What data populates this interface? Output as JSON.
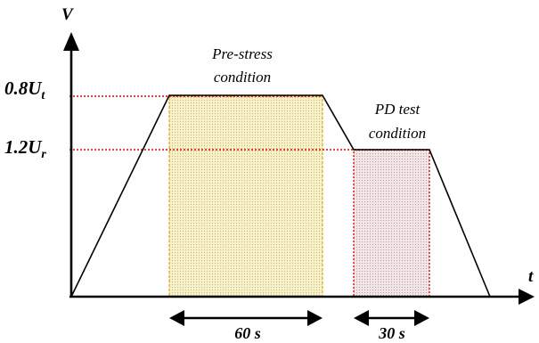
{
  "axes": {
    "y_label": "V",
    "x_label": "t"
  },
  "levels": [
    {
      "base": "0.8U",
      "sub": "t"
    },
    {
      "base": "1.2U",
      "sub": "r"
    }
  ],
  "regions": {
    "pre_stress": {
      "line1": "Pre-stress",
      "line2": "condition",
      "duration": "60 s"
    },
    "pd_test": {
      "line1": "PD test",
      "line2": "condition",
      "duration": "30 s"
    }
  },
  "colors": {
    "reference_line": "#e00000",
    "pre_stress_border": "#e3b21c",
    "pre_stress_fill": "#f7f1cc",
    "pre_stress_dots": "#cdbb6e",
    "pd_test_border": "#e00000",
    "pd_test_fill": "#f3e6e6",
    "pd_test_dots": "#b9a0a0",
    "waveform": "#000000"
  }
}
